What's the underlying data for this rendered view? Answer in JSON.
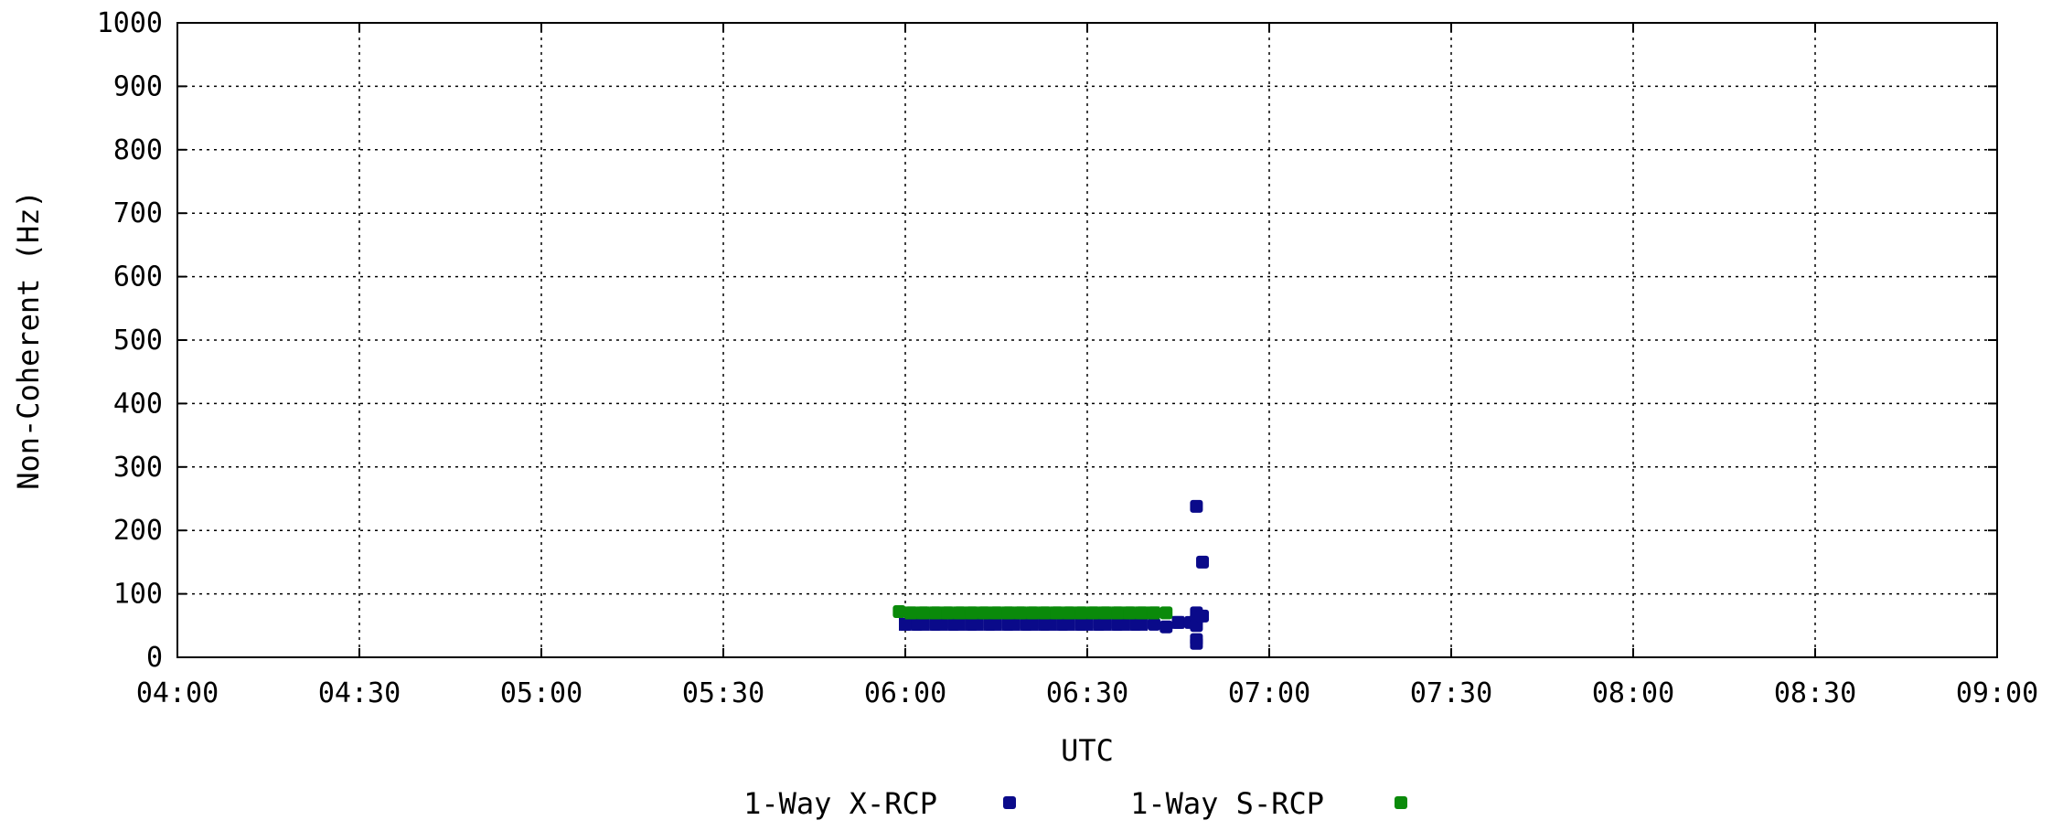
{
  "chart_data": {
    "type": "scatter",
    "title": "",
    "xlabel": "UTC",
    "ylabel": "Non-Coherent (Hz)",
    "x_ticks": [
      "04:00",
      "04:30",
      "05:00",
      "05:30",
      "06:00",
      "06:30",
      "07:00",
      "07:30",
      "08:00",
      "08:30",
      "09:00"
    ],
    "xlim": [
      "04:00",
      "09:00"
    ],
    "y_ticks": [
      0,
      100,
      200,
      300,
      400,
      500,
      600,
      700,
      800,
      900,
      1000
    ],
    "ylim": [
      0,
      1000
    ],
    "grid": true,
    "legend_position": "bottom",
    "series": [
      {
        "name": "1-Way X-RCP",
        "color": "#0a0a8a",
        "x": [
          "06:00",
          "06:02",
          "06:05",
          "06:08",
          "06:11",
          "06:14",
          "06:17",
          "06:20",
          "06:23",
          "06:26",
          "06:29",
          "06:32",
          "06:35",
          "06:38",
          "06:41",
          "06:43",
          "06:45",
          "06:47",
          "06:48",
          "06:48",
          "06:48",
          "06:48",
          "06:48",
          "06:48",
          "06:49",
          "06:49"
        ],
        "y": [
          52,
          52,
          52,
          52,
          52,
          52,
          52,
          52,
          52,
          52,
          52,
          52,
          52,
          52,
          52,
          48,
          55,
          55,
          238,
          70,
          60,
          50,
          28,
          22,
          150,
          65
        ]
      },
      {
        "name": "1-Way S-RCP",
        "color": "#0a8a0a",
        "x": [
          "05:59",
          "06:01",
          "06:03",
          "06:05",
          "06:07",
          "06:09",
          "06:11",
          "06:13",
          "06:15",
          "06:17",
          "06:19",
          "06:21",
          "06:23",
          "06:25",
          "06:27",
          "06:29",
          "06:31",
          "06:33",
          "06:35",
          "06:37",
          "06:39",
          "06:41",
          "06:43"
        ],
        "y": [
          72,
          70,
          70,
          70,
          70,
          70,
          70,
          70,
          70,
          70,
          70,
          70,
          70,
          70,
          70,
          70,
          70,
          70,
          70,
          70,
          70,
          70,
          70
        ]
      }
    ]
  }
}
